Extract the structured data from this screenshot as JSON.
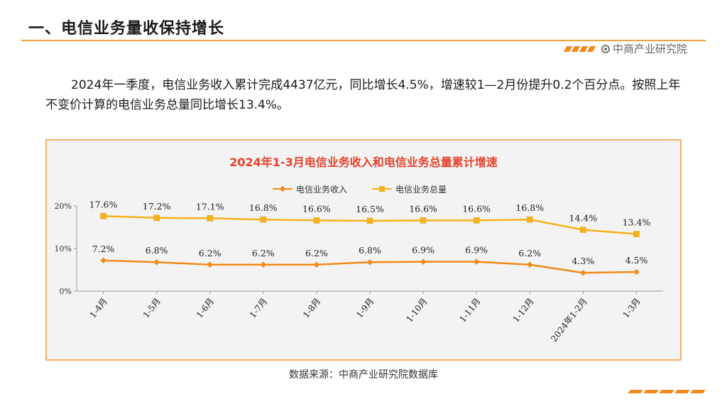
{
  "header": {
    "title": "一、电信业务量收保持增长",
    "brand": "中商产业研究院"
  },
  "body_text": "2024年一季度，电信业务收入累计完成4437亿元，同比增长4.5%，增速较1—2月份提升0.2个百分点。按照上年不变价计算的电信业务总量同比增长13.4%。",
  "source": "数据来源：中商产业研究院数据库",
  "colors": {
    "accent": "#f2a33a",
    "title_red": "#e8412c",
    "revenue_line": "#f08a1c",
    "volume_line": "#f5b21b"
  },
  "chart_data": {
    "type": "line",
    "title": "2024年1-3月电信业务收入和电信业务总量累计增速",
    "categories": [
      "1-4月",
      "1-5月",
      "1-6月",
      "1-7月",
      "1-8月",
      "1-9月",
      "1-10月",
      "1-11月",
      "1-12月",
      "2024年1-2月",
      "1-3月"
    ],
    "series": [
      {
        "name": "电信业务收入",
        "values": [
          7.2,
          6.8,
          6.2,
          6.2,
          6.2,
          6.8,
          6.9,
          6.9,
          6.2,
          4.3,
          4.5
        ],
        "labels": [
          "7.2%",
          "6.8%",
          "6.2%",
          "6.2%",
          "6.2%",
          "6.8%",
          "6.9%",
          "6.9%",
          "6.2%",
          "4.3%",
          "4.5%"
        ],
        "marker": "diamond",
        "color": "#f08a1c"
      },
      {
        "name": "电信业务总量",
        "values": [
          17.6,
          17.2,
          17.1,
          16.8,
          16.6,
          16.5,
          16.6,
          16.6,
          16.8,
          14.4,
          13.4
        ],
        "labels": [
          "17.6%",
          "17.2%",
          "17.1%",
          "16.8%",
          "16.6%",
          "16.5%",
          "16.6%",
          "16.6%",
          "16.8%",
          "14.4%",
          "13.4%"
        ],
        "marker": "square",
        "color": "#f5b21b"
      }
    ],
    "yticks": [
      "0%",
      "10%",
      "20%"
    ],
    "ytick_values": [
      0,
      10,
      20
    ],
    "ylim": [
      0,
      20
    ],
    "legend": "top-center",
    "grid": false
  }
}
